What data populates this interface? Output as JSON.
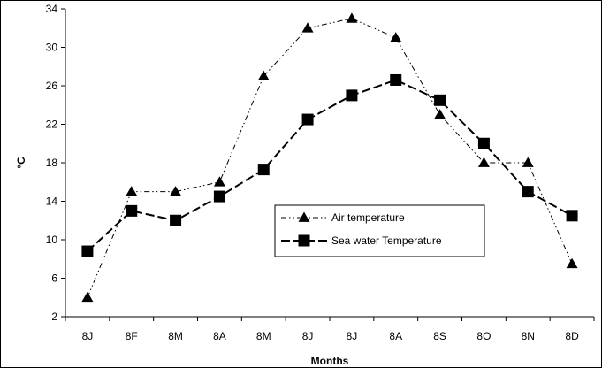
{
  "chart_data": {
    "type": "line",
    "title": "",
    "xlabel": "Months",
    "ylabel": "°C",
    "categories": [
      "8J",
      "8F",
      "8M",
      "8A",
      "8M",
      "8J",
      "8J",
      "8A",
      "8S",
      "8O",
      "8N",
      "8D"
    ],
    "ylim": [
      2,
      34
    ],
    "yticks": [
      2,
      6,
      10,
      14,
      18,
      22,
      26,
      30,
      34
    ],
    "grid": false,
    "legend_position": "center-right",
    "series": [
      {
        "name": "Air temperature",
        "marker": "triangle",
        "line_style": "dash-dot-dot",
        "values": [
          4,
          15,
          15,
          16,
          27,
          32,
          33,
          31,
          23,
          18,
          18,
          7.5
        ]
      },
      {
        "name": "Sea water Temperature",
        "marker": "square",
        "line_style": "long-dash",
        "values": [
          8.8,
          13,
          12,
          14.5,
          17.3,
          22.5,
          25,
          26.6,
          24.5,
          20,
          15,
          12.5
        ]
      }
    ],
    "colors": {
      "line": "#000000",
      "background": "#ffffff",
      "frame": "#000000"
    }
  }
}
